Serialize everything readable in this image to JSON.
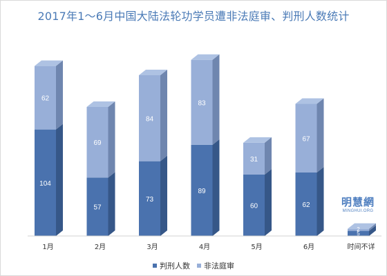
{
  "title": "2017年1〜6月中国大陆法轮功学员遭非法庭审、判刑人数统计",
  "watermark": {
    "cn": "明慧網",
    "en": "MINGHUI.ORG"
  },
  "colors": {
    "sentenced_front": "#4a72ae",
    "sentenced_side": "#365788",
    "sentenced_top": "#5a83bf",
    "tried_front": "#98afd8",
    "tried_side": "#6f86af",
    "tried_top": "#aec2e3",
    "text_on_bar": "#ffffff",
    "axis_text": "#333333"
  },
  "chart_data": {
    "type": "bar",
    "stacked": true,
    "three_d": true,
    "title": "2017年1〜6月中国大陆法轮功学员遭非法庭审、判刑人数统计",
    "categories": [
      "1月",
      "2月",
      "3月",
      "4月",
      "5月",
      "6月",
      "时间不详"
    ],
    "series": [
      {
        "name": "判刑人数",
        "values": [
          104,
          57,
          73,
          89,
          60,
          62,
          5
        ]
      },
      {
        "name": "非法庭审",
        "values": [
          62,
          69,
          84,
          83,
          31,
          67,
          2
        ]
      }
    ],
    "ylim": [
      0,
      190
    ],
    "grid": false,
    "legend": "bottom"
  }
}
